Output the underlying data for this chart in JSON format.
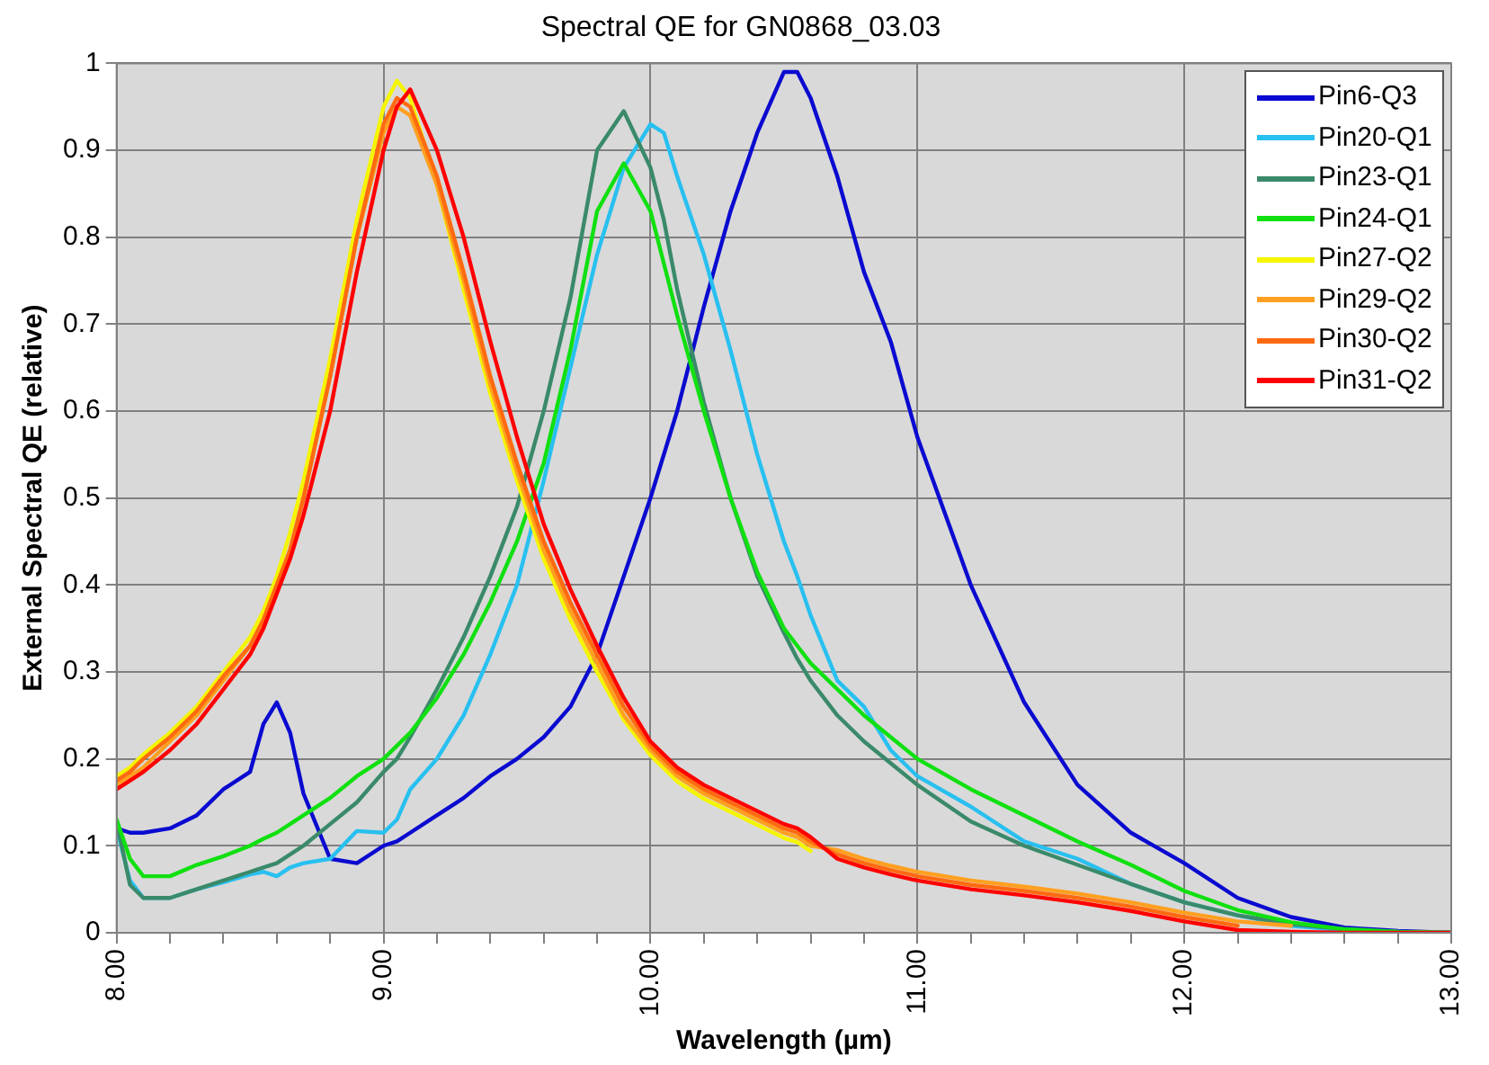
{
  "chart_data": {
    "type": "line",
    "title": "Spectral QE for GN0868_03.03",
    "xlabel": "Wavelength (µm)",
    "ylabel": "External Spectral QE (relative)",
    "x": [
      8.0,
      8.05,
      8.1,
      8.2,
      8.3,
      8.4,
      8.5,
      8.55,
      8.6,
      8.65,
      8.7,
      8.8,
      8.9,
      9.0,
      9.05,
      9.1,
      9.2,
      9.3,
      9.4,
      9.5,
      9.6,
      9.7,
      9.8,
      9.9,
      10.0,
      10.05,
      10.1,
      10.2,
      10.3,
      10.4,
      10.5,
      10.55,
      10.6,
      10.7,
      10.8,
      10.9,
      11.0,
      11.2,
      11.4,
      11.6,
      11.8,
      12.0,
      12.2,
      12.4,
      12.6,
      12.8,
      13.0
    ],
    "series": [
      {
        "name": "Pin6-Q3",
        "color": "#0a0ad0",
        "values": [
          0.12,
          0.115,
          0.115,
          0.12,
          0.135,
          0.165,
          0.185,
          0.24,
          0.265,
          0.23,
          0.16,
          0.085,
          0.08,
          0.1,
          0.105,
          0.115,
          0.135,
          0.155,
          0.18,
          0.2,
          0.225,
          0.26,
          0.32,
          0.41,
          0.5,
          0.55,
          0.6,
          0.72,
          0.83,
          0.92,
          0.99,
          0.99,
          0.96,
          0.87,
          0.76,
          0.68,
          0.57,
          0.4,
          0.265,
          0.17,
          0.115,
          0.08,
          0.04,
          0.018,
          0.006,
          0.002,
          0
        ]
      },
      {
        "name": "Pin20-Q1",
        "color": "#28c0f0",
        "values": [
          0.12,
          0.06,
          0.04,
          0.04,
          0.05,
          0.058,
          0.067,
          0.07,
          0.065,
          0.075,
          0.08,
          0.085,
          0.117,
          0.115,
          0.13,
          0.165,
          0.2,
          0.25,
          0.32,
          0.4,
          0.52,
          0.65,
          0.78,
          0.88,
          0.93,
          0.92,
          0.87,
          0.78,
          0.67,
          0.55,
          0.45,
          0.41,
          0.365,
          0.29,
          0.26,
          0.21,
          0.18,
          0.145,
          0.105,
          0.085,
          0.056,
          0.035,
          0.02,
          0.008,
          0.003,
          0.001,
          0
        ]
      },
      {
        "name": "Pin23-Q1",
        "color": "#3a8a6a",
        "values": [
          0.128,
          0.055,
          0.04,
          0.04,
          0.05,
          0.06,
          0.07,
          0.075,
          0.08,
          0.09,
          0.1,
          0.125,
          0.15,
          0.185,
          0.2,
          0.225,
          0.28,
          0.34,
          0.41,
          0.49,
          0.6,
          0.73,
          0.9,
          0.945,
          0.88,
          0.82,
          0.74,
          0.61,
          0.5,
          0.41,
          0.345,
          0.315,
          0.29,
          0.25,
          0.22,
          0.195,
          0.17,
          0.128,
          0.1,
          0.078,
          0.056,
          0.035,
          0.02,
          0.01,
          0.004,
          0.001,
          0
        ]
      },
      {
        "name": "Pin24-Q1",
        "color": "#10e010",
        "values": [
          0.13,
          0.085,
          0.065,
          0.065,
          0.078,
          0.088,
          0.1,
          0.108,
          0.115,
          0.125,
          0.135,
          0.155,
          0.18,
          0.2,
          0.215,
          0.23,
          0.27,
          0.32,
          0.38,
          0.45,
          0.54,
          0.67,
          0.83,
          0.885,
          0.83,
          0.77,
          0.71,
          0.6,
          0.5,
          0.415,
          0.35,
          0.33,
          0.31,
          0.28,
          0.25,
          0.225,
          0.2,
          0.165,
          0.135,
          0.105,
          0.078,
          0.048,
          0.026,
          0.012,
          0.004,
          0.001,
          0
        ]
      },
      {
        "name": "Pin27-Q2",
        "color": "#f5f500",
        "values": [
          0.18,
          0.19,
          0.205,
          0.23,
          0.26,
          0.3,
          0.34,
          0.37,
          0.41,
          0.46,
          0.52,
          0.66,
          0.82,
          0.95,
          0.98,
          0.96,
          0.86,
          0.74,
          0.62,
          0.52,
          0.43,
          0.36,
          0.3,
          0.245,
          0.204,
          0.189,
          0.174,
          0.154,
          0.139,
          0.124,
          0.109,
          0.104,
          0.094,
          null,
          null,
          null,
          null,
          null,
          null,
          null,
          null,
          null,
          null,
          null,
          null,
          null,
          null
        ]
      },
      {
        "name": "Pin29-Q2",
        "color": "#ffa020",
        "values": [
          0.17,
          0.18,
          0.19,
          0.22,
          0.25,
          0.29,
          0.33,
          0.36,
          0.4,
          0.44,
          0.5,
          0.64,
          0.8,
          0.92,
          0.95,
          0.94,
          0.86,
          0.75,
          0.63,
          0.53,
          0.44,
          0.37,
          0.31,
          0.25,
          0.21,
          0.195,
          0.18,
          0.16,
          0.145,
          0.13,
          0.115,
          0.11,
          0.1,
          0.095,
          0.085,
          0.077,
          0.07,
          0.06,
          0.053,
          0.045,
          0.035,
          0.023,
          0.013,
          0.008,
          null,
          null,
          null
        ]
      },
      {
        "name": "Pin30-Q2",
        "color": "#ff6a10",
        "values": [
          0.175,
          0.185,
          0.2,
          0.225,
          0.255,
          0.295,
          0.33,
          0.36,
          0.4,
          0.44,
          0.5,
          0.64,
          0.8,
          0.93,
          0.96,
          0.95,
          0.87,
          0.76,
          0.64,
          0.54,
          0.45,
          0.38,
          0.32,
          0.26,
          0.215,
          0.2,
          0.185,
          0.165,
          0.15,
          0.135,
          0.12,
          0.115,
          0.105,
          0.09,
          0.08,
          0.072,
          0.065,
          0.055,
          0.048,
          0.04,
          0.03,
          0.018,
          0.008,
          null,
          null,
          null,
          null
        ]
      },
      {
        "name": "Pin31-Q2",
        "color": "#ff0000",
        "values": [
          0.165,
          0.175,
          0.185,
          0.21,
          0.24,
          0.28,
          0.32,
          0.35,
          0.39,
          0.43,
          0.48,
          0.6,
          0.76,
          0.9,
          0.95,
          0.97,
          0.9,
          0.8,
          0.68,
          0.57,
          0.47,
          0.395,
          0.33,
          0.27,
          0.22,
          0.205,
          0.19,
          0.17,
          0.155,
          0.14,
          0.125,
          0.12,
          0.11,
          0.085,
          0.075,
          0.067,
          0.06,
          0.05,
          0.043,
          0.035,
          0.025,
          0.013,
          0.003,
          0.001,
          0,
          0,
          0
        ]
      }
    ],
    "xlim": [
      8,
      13
    ],
    "xticks": [
      {
        "value": 8,
        "label": "8.00"
      },
      {
        "value": 8.2,
        "label": null
      },
      {
        "value": 8.4,
        "label": null
      },
      {
        "value": 8.6,
        "label": null
      },
      {
        "value": 8.8,
        "label": null
      },
      {
        "value": 9,
        "label": "9.00"
      },
      {
        "value": 9.2,
        "label": null
      },
      {
        "value": 9.4,
        "label": null
      },
      {
        "value": 9.6,
        "label": null
      },
      {
        "value": 9.8,
        "label": null
      },
      {
        "value": 10,
        "label": "10.00"
      },
      {
        "value": 10.2,
        "label": null
      },
      {
        "value": 10.4,
        "label": null
      },
      {
        "value": 10.6,
        "label": null
      },
      {
        "value": 10.8,
        "label": null
      },
      {
        "value": 11,
        "label": "11.00"
      },
      {
        "value": 11.2,
        "label": null
      },
      {
        "value": 11.4,
        "label": null
      },
      {
        "value": 11.6,
        "label": null
      },
      {
        "value": 11.8,
        "label": null
      },
      {
        "value": 12,
        "label": "12.00"
      },
      {
        "value": 12.2,
        "label": null
      },
      {
        "value": 12.4,
        "label": null
      },
      {
        "value": 12.6,
        "label": null
      },
      {
        "value": 12.8,
        "label": null
      },
      {
        "value": 13,
        "label": "13.00"
      }
    ],
    "ylim": [
      0,
      1
    ],
    "yticks": [
      0,
      0.1,
      0.2,
      0.3,
      0.4,
      0.5,
      0.6,
      0.7,
      0.8,
      0.9,
      1
    ],
    "grid": true,
    "legend": "top right",
    "marker": "none",
    "line_style": "solid"
  }
}
